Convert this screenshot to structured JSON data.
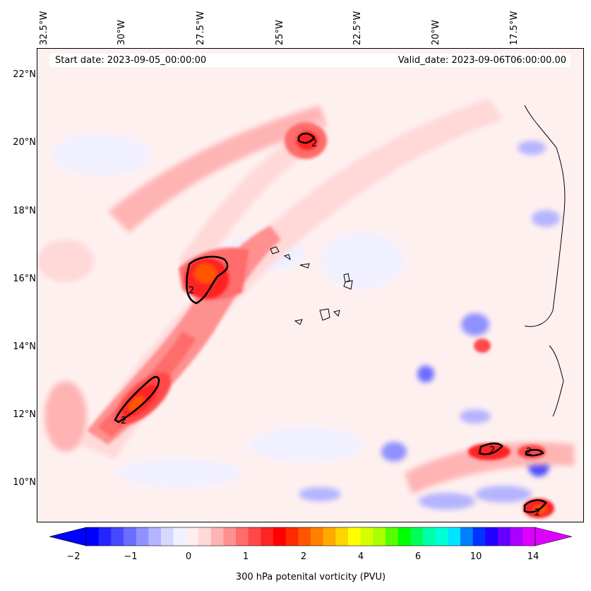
{
  "header": {
    "start_date": "Start date: 2023-09-05_00:00:00",
    "valid_date": "Valid_date: 2023-09-06T06:00:00.00"
  },
  "longitude_labels": [
    "32.5°W",
    "30°W",
    "27.5°W",
    "25°W",
    "22.5°W",
    "20°W",
    "17.5°W"
  ],
  "latitude_labels": [
    "22°N",
    "20°N",
    "18°N",
    "16°N",
    "14°N",
    "12°N",
    "10°N"
  ],
  "colorbar": {
    "ticks": [
      "−2",
      "−1",
      "0",
      "1",
      "2",
      "4",
      "6",
      "10",
      "14"
    ],
    "label": "300 hPa potenital vorticity (PVU)",
    "colors": [
      "#0000ff",
      "#2424ff",
      "#4848ff",
      "#6c6cff",
      "#9090ff",
      "#b4b4ff",
      "#d8d8ff",
      "#f0f0ff",
      "#ffeeee",
      "#ffd8d8",
      "#ffb4b4",
      "#ff9090",
      "#ff6c6c",
      "#ff4848",
      "#ff2424",
      "#ff0000",
      "#ff2a00",
      "#ff5500",
      "#ff8000",
      "#ffaa00",
      "#ffd500",
      "#ffff00",
      "#d5ff00",
      "#aaff00",
      "#55ff00",
      "#00ff00",
      "#00ff55",
      "#00ffaa",
      "#00ffd5",
      "#00e5ff",
      "#0080ff",
      "#0033ff",
      "#2200ff",
      "#6600ff",
      "#aa00ff",
      "#dd00ff"
    ],
    "under_color": "#0000ff",
    "over_color": "#dd00ff"
  },
  "contour_label": "2",
  "colors": {
    "background_field": "#fff0f0",
    "light_red": "#ffb4b4",
    "mid_red": "#ff6c6c",
    "strong_red": "#ff2424",
    "core": "#ff5500",
    "light_blue": "#b4b4ff",
    "mid_blue": "#6c6cff"
  }
}
